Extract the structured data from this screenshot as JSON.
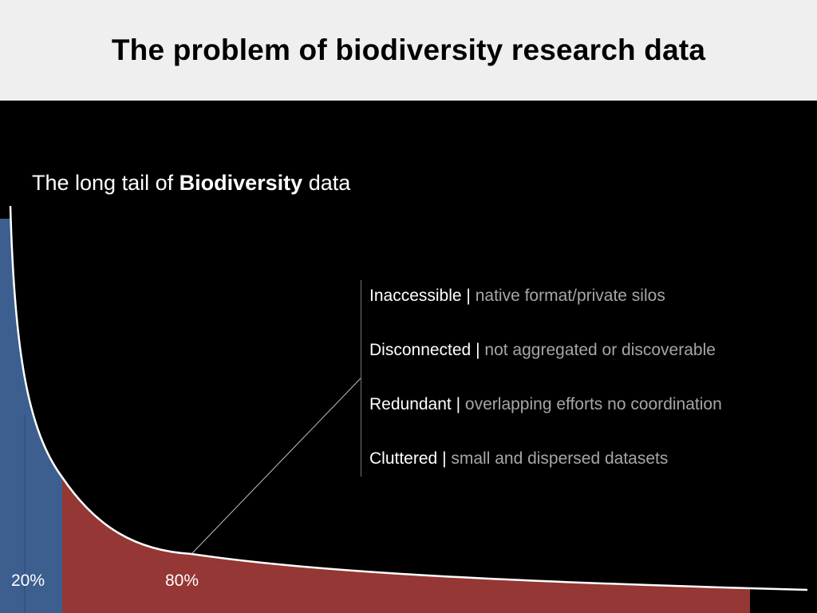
{
  "slide": {
    "title": "The problem of biodiversity research data",
    "subtitle": {
      "prefix": "The long tail of ",
      "emphasis": "Biodiversity",
      "suffix": " data"
    }
  },
  "bullets": [
    {
      "term": "Inaccessible",
      "separator": "|",
      "description": "native format/private silos"
    },
    {
      "term": "Disconnected",
      "separator": "|",
      "description": "not aggregated or discoverable"
    },
    {
      "term": "Redundant",
      "separator": "|",
      "description": "overlapping efforts no coordination"
    },
    {
      "term": "Cluttered",
      "separator": "|",
      "description": "small and dispersed datasets"
    }
  ],
  "regions": {
    "head_label": "20%",
    "tail_label": "80%"
  },
  "colors": {
    "head_fill": "#3c5f8f",
    "tail_fill": "#953735",
    "curve": "#ffffff",
    "header_bg": "#efefef"
  }
}
